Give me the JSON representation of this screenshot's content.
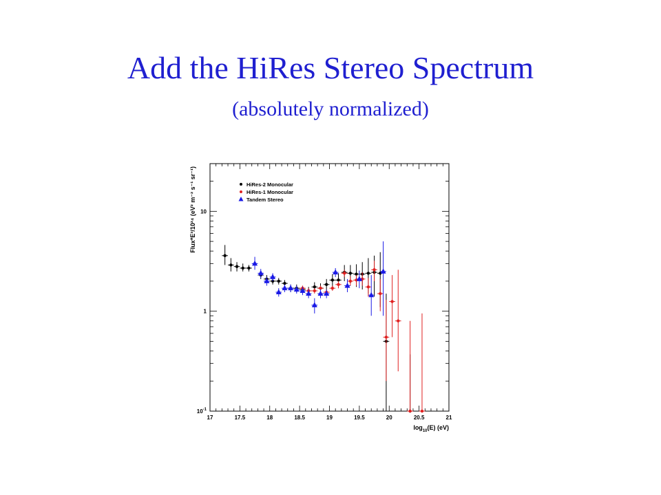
{
  "slide": {
    "title": "Add the HiRes Stereo Spectrum",
    "subtitle": "(absolutely normalized)"
  },
  "chart_data": {
    "type": "scatter",
    "xlabel": "log10(E) (eV)",
    "ylabel": "Flux*E³/10²⁴ (eV² m⁻² s⁻¹ sr⁻¹)",
    "xlim": [
      17,
      21
    ],
    "ylim": [
      0.1,
      30
    ],
    "yscale": "log",
    "grid": false,
    "legend_position": "top-left",
    "x_ticks": [
      "17",
      "17.5",
      "18",
      "18.5",
      "19",
      "19.5",
      "20",
      "20.5",
      "21"
    ],
    "y_ticks": [
      {
        "value": 0.1,
        "base": "10",
        "exp": "-1"
      },
      {
        "value": 1,
        "base": "1",
        "exp": ""
      },
      {
        "value": 10,
        "base": "10",
        "exp": ""
      }
    ],
    "series": [
      {
        "name": "HiRes-2 Monocular",
        "color": "#000000",
        "marker": "circle",
        "points": [
          {
            "x": 17.25,
            "y": 3.6,
            "ylo": 2.9,
            "yhi": 4.6
          },
          {
            "x": 17.35,
            "y": 2.9,
            "ylo": 2.5,
            "yhi": 3.4
          },
          {
            "x": 17.45,
            "y": 2.8,
            "ylo": 2.5,
            "yhi": 3.1
          },
          {
            "x": 17.55,
            "y": 2.7,
            "ylo": 2.5,
            "yhi": 3.0
          },
          {
            "x": 17.65,
            "y": 2.7,
            "ylo": 2.5,
            "yhi": 2.9
          },
          {
            "x": 17.85,
            "y": 2.3,
            "ylo": 2.1,
            "yhi": 2.5
          },
          {
            "x": 17.95,
            "y": 2.1,
            "ylo": 2.0,
            "yhi": 2.3
          },
          {
            "x": 18.05,
            "y": 2.0,
            "ylo": 1.85,
            "yhi": 2.15
          },
          {
            "x": 18.15,
            "y": 2.0,
            "ylo": 1.85,
            "yhi": 2.15
          },
          {
            "x": 18.25,
            "y": 1.9,
            "ylo": 1.75,
            "yhi": 2.05
          },
          {
            "x": 18.35,
            "y": 1.7,
            "ylo": 1.55,
            "yhi": 1.85
          },
          {
            "x": 18.45,
            "y": 1.7,
            "ylo": 1.55,
            "yhi": 1.85
          },
          {
            "x": 18.55,
            "y": 1.65,
            "ylo": 1.5,
            "yhi": 1.8
          },
          {
            "x": 18.65,
            "y": 1.6,
            "ylo": 1.45,
            "yhi": 1.75
          },
          {
            "x": 18.75,
            "y": 1.75,
            "ylo": 1.55,
            "yhi": 1.95
          },
          {
            "x": 18.85,
            "y": 1.7,
            "ylo": 1.5,
            "yhi": 1.9
          },
          {
            "x": 18.95,
            "y": 1.85,
            "ylo": 1.6,
            "yhi": 2.1
          },
          {
            "x": 19.05,
            "y": 2.05,
            "ylo": 1.75,
            "yhi": 2.35
          },
          {
            "x": 19.15,
            "y": 2.05,
            "ylo": 1.7,
            "yhi": 2.4
          },
          {
            "x": 19.25,
            "y": 2.45,
            "ylo": 2.0,
            "yhi": 2.9
          },
          {
            "x": 19.35,
            "y": 2.4,
            "ylo": 1.9,
            "yhi": 2.9
          },
          {
            "x": 19.45,
            "y": 2.35,
            "ylo": 1.75,
            "yhi": 2.95
          },
          {
            "x": 19.55,
            "y": 2.35,
            "ylo": 1.65,
            "yhi": 3.1
          },
          {
            "x": 19.65,
            "y": 2.4,
            "ylo": 1.5,
            "yhi": 3.4
          },
          {
            "x": 19.75,
            "y": 2.45,
            "ylo": 1.4,
            "yhi": 3.6
          },
          {
            "x": 19.85,
            "y": 2.4,
            "ylo": 1.1,
            "yhi": 3.9
          },
          {
            "x": 19.95,
            "y": 0.5,
            "ylo": 0.1,
            "yhi": 1.5
          },
          {
            "x": 20.35,
            "y": 0.1,
            "ylo": 0.1,
            "yhi": 0.37
          }
        ]
      },
      {
        "name": "HiRes-1 Monocular",
        "color": "#e02020",
        "marker": "circle",
        "points": [
          {
            "x": 18.55,
            "y": 1.7,
            "ylo": 1.6,
            "yhi": 1.8
          },
          {
            "x": 18.65,
            "y": 1.6,
            "ylo": 1.5,
            "yhi": 1.7
          },
          {
            "x": 18.75,
            "y": 1.6,
            "ylo": 1.5,
            "yhi": 1.7
          },
          {
            "x": 18.85,
            "y": 1.7,
            "ylo": 1.6,
            "yhi": 1.8
          },
          {
            "x": 18.95,
            "y": 1.55,
            "ylo": 1.45,
            "yhi": 1.65
          },
          {
            "x": 19.05,
            "y": 1.7,
            "ylo": 1.6,
            "yhi": 1.8
          },
          {
            "x": 19.15,
            "y": 1.85,
            "ylo": 1.7,
            "yhi": 2.0
          },
          {
            "x": 19.25,
            "y": 2.4,
            "ylo": 2.2,
            "yhi": 2.6
          },
          {
            "x": 19.35,
            "y": 2.0,
            "ylo": 1.8,
            "yhi": 2.25
          },
          {
            "x": 19.45,
            "y": 2.05,
            "ylo": 1.8,
            "yhi": 2.3
          },
          {
            "x": 19.55,
            "y": 2.1,
            "ylo": 1.8,
            "yhi": 2.45
          },
          {
            "x": 19.65,
            "y": 1.75,
            "ylo": 1.4,
            "yhi": 2.15
          },
          {
            "x": 19.75,
            "y": 2.6,
            "ylo": 2.0,
            "yhi": 3.2
          },
          {
            "x": 19.85,
            "y": 1.5,
            "ylo": 1.0,
            "yhi": 2.1
          },
          {
            "x": 19.95,
            "y": 0.55,
            "ylo": 0.2,
            "yhi": 1.3
          },
          {
            "x": 20.05,
            "y": 1.25,
            "ylo": 0.55,
            "yhi": 2.3
          },
          {
            "x": 20.15,
            "y": 0.8,
            "ylo": 0.25,
            "yhi": 2.6
          },
          {
            "x": 20.35,
            "y": 0.1,
            "ylo": 0.1,
            "yhi": 0.8
          },
          {
            "x": 20.55,
            "y": 0.1,
            "ylo": 0.1,
            "yhi": 0.95
          }
        ]
      },
      {
        "name": "Tandem Stereo",
        "color": "#1a1ae6",
        "marker": "triangle",
        "points": [
          {
            "x": 17.75,
            "y": 3.0,
            "ylo": 2.6,
            "yhi": 3.5
          },
          {
            "x": 17.85,
            "y": 2.4,
            "ylo": 2.15,
            "yhi": 2.65
          },
          {
            "x": 17.95,
            "y": 2.0,
            "ylo": 1.8,
            "yhi": 2.2
          },
          {
            "x": 18.05,
            "y": 2.2,
            "ylo": 2.0,
            "yhi": 2.4
          },
          {
            "x": 18.15,
            "y": 1.55,
            "ylo": 1.4,
            "yhi": 1.7
          },
          {
            "x": 18.25,
            "y": 1.7,
            "ylo": 1.55,
            "yhi": 1.85
          },
          {
            "x": 18.35,
            "y": 1.7,
            "ylo": 1.55,
            "yhi": 1.85
          },
          {
            "x": 18.45,
            "y": 1.65,
            "ylo": 1.5,
            "yhi": 1.8
          },
          {
            "x": 18.55,
            "y": 1.6,
            "ylo": 1.45,
            "yhi": 1.75
          },
          {
            "x": 18.65,
            "y": 1.5,
            "ylo": 1.35,
            "yhi": 1.65
          },
          {
            "x": 18.75,
            "y": 1.15,
            "ylo": 0.95,
            "yhi": 1.35
          },
          {
            "x": 18.85,
            "y": 1.5,
            "ylo": 1.35,
            "yhi": 1.65
          },
          {
            "x": 18.95,
            "y": 1.5,
            "ylo": 1.35,
            "yhi": 1.65
          },
          {
            "x": 19.1,
            "y": 2.45,
            "ylo": 2.2,
            "yhi": 2.7
          },
          {
            "x": 19.3,
            "y": 1.8,
            "ylo": 1.55,
            "yhi": 2.1
          },
          {
            "x": 19.5,
            "y": 2.1,
            "ylo": 1.7,
            "yhi": 2.55
          },
          {
            "x": 19.7,
            "y": 1.45,
            "ylo": 0.9,
            "yhi": 2.3
          },
          {
            "x": 19.9,
            "y": 2.5,
            "ylo": 0.9,
            "yhi": 5.0
          }
        ]
      }
    ]
  }
}
